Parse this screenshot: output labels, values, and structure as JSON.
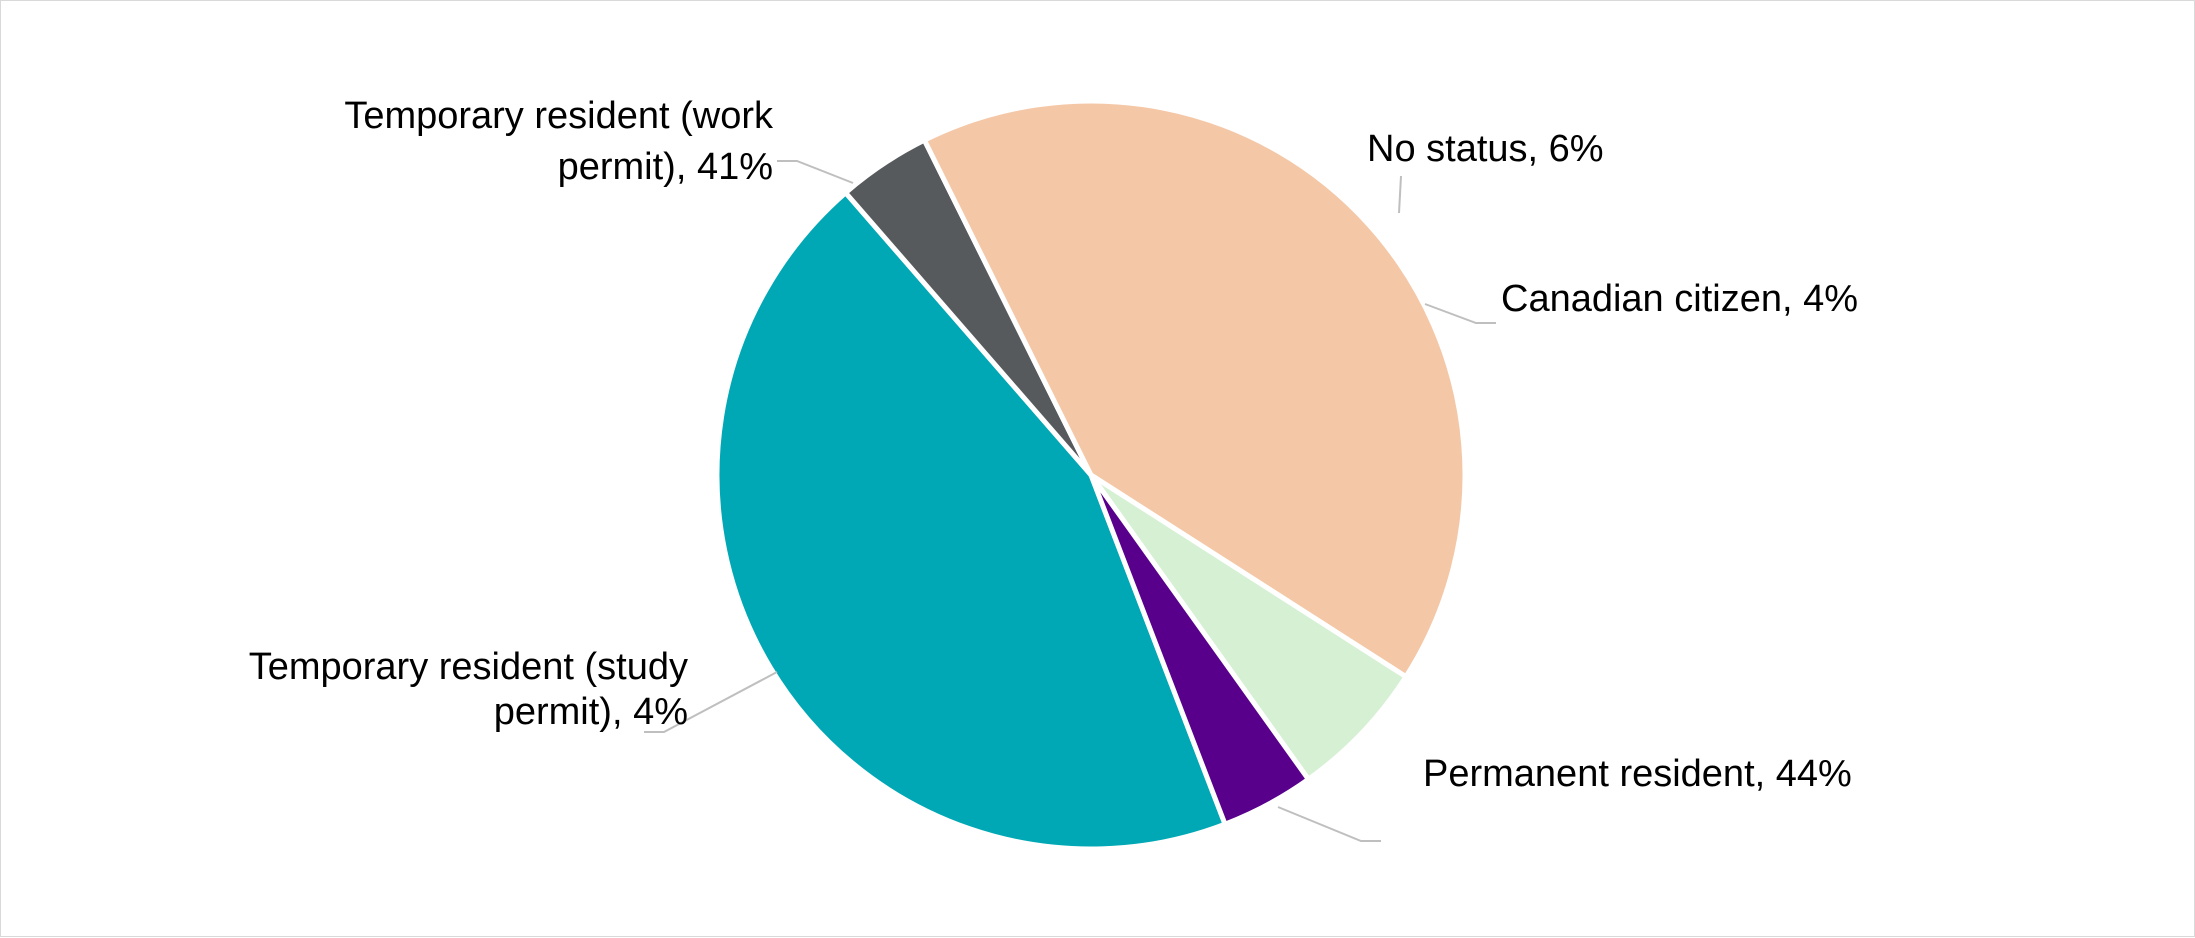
{
  "chart_data": {
    "type": "pie",
    "title": "",
    "series": [
      {
        "values": [
          44,
          41,
          4,
          6,
          4
        ],
        "categories": [
          "Permanent resident",
          "Temporary resident (work permit)",
          "Temporary resident (study permit)",
          "No status",
          "Canadian citizen"
        ]
      }
    ],
    "slices": [
      {
        "key": "permanent-resident",
        "name": "Permanent resident",
        "value": 44,
        "label_lines": [
          "Permanent resident, 44%"
        ],
        "color": "#00a8b5"
      },
      {
        "key": "temporary-resident-study",
        "name": "Temporary resident (study permit)",
        "value": 4,
        "label_lines": [
          "Temporary resident (study",
          "permit), 4%"
        ],
        "color": "#575a5d"
      },
      {
        "key": "temporary-resident-work",
        "name": "Temporary resident (work permit)",
        "value": 41,
        "label_lines": [
          "Temporary resident (work",
          "permit), 41%"
        ],
        "color": "#f4c7a6"
      },
      {
        "key": "no-status",
        "name": "No status",
        "value": 6,
        "label_lines": [
          "No status, 6%"
        ],
        "color": "#d6f0d4"
      },
      {
        "key": "canadian-citizen",
        "name": "Canadian citizen",
        "value": 4,
        "label_lines": [
          "Canadian citizen, 4%"
        ],
        "color": "#58008c"
      }
    ],
    "legend": "none",
    "data_labels": "outside with leader lines"
  }
}
